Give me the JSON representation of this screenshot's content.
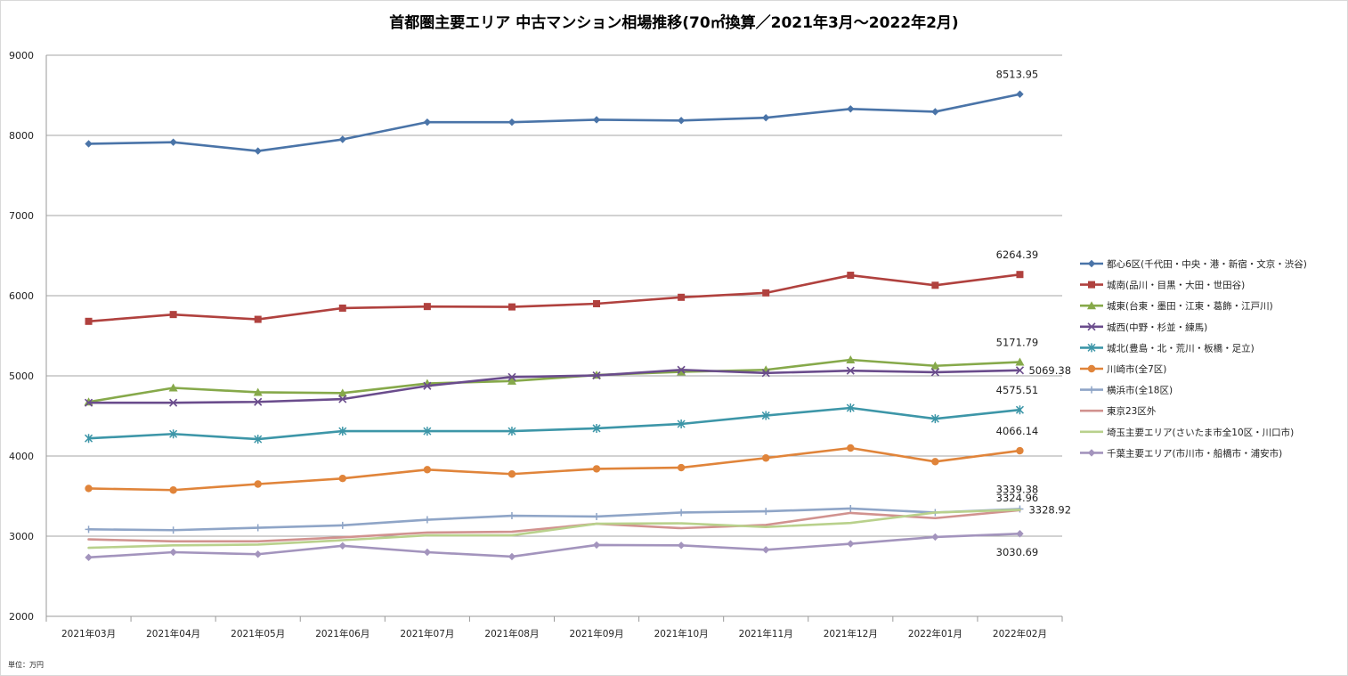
{
  "chart_data": {
    "type": "line",
    "title": "首都圏主要エリア 中古マンション相場推移(70㎡換算／2021年3月～2022年2月)",
    "unit_note": "単位：万円",
    "xlabel": "",
    "ylabel": "",
    "ylim": [
      2000,
      9000
    ],
    "yticks": [
      2000,
      3000,
      4000,
      5000,
      6000,
      7000,
      8000,
      9000
    ],
    "grid": true,
    "legend_position": "right",
    "categories": [
      "2021年03月",
      "2021年04月",
      "2021年05月",
      "2021年06月",
      "2021年07月",
      "2021年08月",
      "2021年09月",
      "2021年10月",
      "2021年11月",
      "2021年12月",
      "2022年01月",
      "2022年02月"
    ],
    "series": [
      {
        "name": "都心6区(千代田・中央・港・新宿・文京・渋谷)",
        "color": "#4a74a8",
        "marker": "diamond",
        "values": [
          7895,
          7915,
          7805,
          7950,
          8165,
          8165,
          8195,
          8185,
          8220,
          8330,
          8295,
          8513.95
        ]
      },
      {
        "name": "城南(品川・目黒・大田・世田谷)",
        "color": "#b0413e",
        "marker": "square",
        "values": [
          5680,
          5765,
          5705,
          5845,
          5865,
          5860,
          5900,
          5980,
          6035,
          6255,
          6130,
          6264.39
        ]
      },
      {
        "name": "城東(台東・墨田・江東・葛飾・江戸川)",
        "color": "#86a94a",
        "marker": "triangle",
        "values": [
          4675,
          4850,
          4795,
          4785,
          4905,
          4935,
          5010,
          5050,
          5075,
          5200,
          5125,
          5171.79
        ]
      },
      {
        "name": "城西(中野・杉並・練馬)",
        "color": "#6a4c8c",
        "marker": "x",
        "values": [
          4665,
          4665,
          4675,
          4710,
          4875,
          4985,
          5005,
          5075,
          5035,
          5065,
          5045,
          5069.38
        ]
      },
      {
        "name": "城北(豊島・北・荒川・板橋・足立)",
        "color": "#3d96a8",
        "marker": "asterisk",
        "values": [
          4220,
          4275,
          4210,
          4310,
          4310,
          4310,
          4345,
          4400,
          4505,
          4600,
          4465,
          4575.51
        ]
      },
      {
        "name": "川崎市(全7区)",
        "color": "#e0843a",
        "marker": "circle",
        "values": [
          3595,
          3575,
          3650,
          3720,
          3830,
          3775,
          3840,
          3855,
          3975,
          4100,
          3930,
          4066.14
        ]
      },
      {
        "name": "横浜市(全18区)",
        "color": "#8fa5c7",
        "marker": "plus",
        "values": [
          3085,
          3075,
          3105,
          3135,
          3205,
          3255,
          3245,
          3295,
          3310,
          3345,
          3295,
          3339.38
        ]
      },
      {
        "name": "東京23区外",
        "color": "#d1928f",
        "marker": "none",
        "values": [
          2960,
          2935,
          2935,
          2985,
          3045,
          3055,
          3155,
          3100,
          3140,
          3290,
          3225,
          3324.96
        ]
      },
      {
        "name": "埼玉主要エリア(さいたま市全10区・川口市)",
        "color": "#b9d18c",
        "marker": "none",
        "values": [
          2855,
          2885,
          2895,
          2950,
          3010,
          3010,
          3155,
          3160,
          3115,
          3165,
          3295,
          3328.92
        ]
      },
      {
        "name": "千葉主要エリア(市川市・船橋市・浦安市)",
        "color": "#a394bd",
        "marker": "diamond",
        "values": [
          2735,
          2800,
          2775,
          2880,
          2800,
          2745,
          2890,
          2885,
          2830,
          2905,
          2990,
          3030.69
        ]
      }
    ],
    "data_labels": [
      "8513.95",
      "6264.39",
      "5171.79",
      "5069.38",
      "4575.51",
      "4066.14",
      "3339.38",
      "3328.92",
      "3324.96",
      "3030.69"
    ]
  }
}
